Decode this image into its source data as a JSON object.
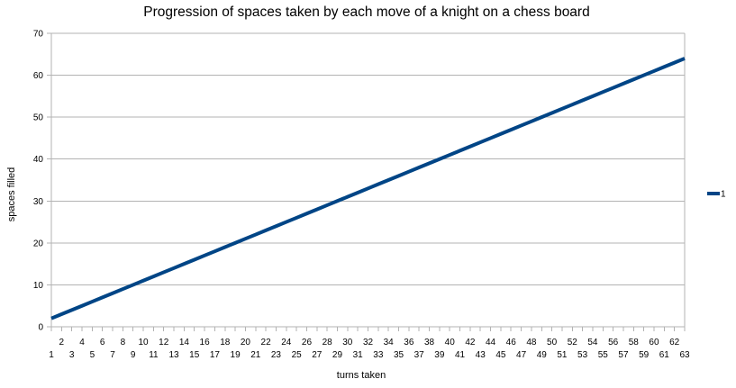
{
  "chart_data": {
    "type": "line",
    "title": "Progression of spaces taken by each move of a knight on a chess board",
    "xlabel": "turns taken",
    "ylabel": "spaces filled",
    "x": [
      1,
      2,
      3,
      4,
      5,
      6,
      7,
      8,
      9,
      10,
      11,
      12,
      13,
      14,
      15,
      16,
      17,
      18,
      19,
      20,
      21,
      22,
      23,
      24,
      25,
      26,
      27,
      28,
      29,
      30,
      31,
      32,
      33,
      34,
      35,
      36,
      37,
      38,
      39,
      40,
      41,
      42,
      43,
      44,
      45,
      46,
      47,
      48,
      49,
      50,
      51,
      52,
      53,
      54,
      55,
      56,
      57,
      58,
      59,
      60,
      61,
      62,
      63
    ],
    "series": [
      {
        "name": "1",
        "color": "#004586",
        "values": [
          2,
          3,
          4,
          5,
          6,
          7,
          8,
          9,
          10,
          11,
          12,
          13,
          14,
          15,
          16,
          17,
          18,
          19,
          20,
          21,
          22,
          23,
          24,
          25,
          26,
          27,
          28,
          29,
          30,
          31,
          32,
          33,
          34,
          35,
          36,
          37,
          38,
          39,
          40,
          41,
          42,
          43,
          44,
          45,
          46,
          47,
          48,
          49,
          50,
          51,
          52,
          53,
          54,
          55,
          56,
          57,
          58,
          59,
          60,
          61,
          62,
          63,
          64
        ]
      }
    ],
    "ylim": [
      0,
      70
    ],
    "yticks": [
      0,
      10,
      20,
      30,
      40,
      50,
      60,
      70
    ],
    "grid": "horizontal",
    "legend_position": "right"
  }
}
